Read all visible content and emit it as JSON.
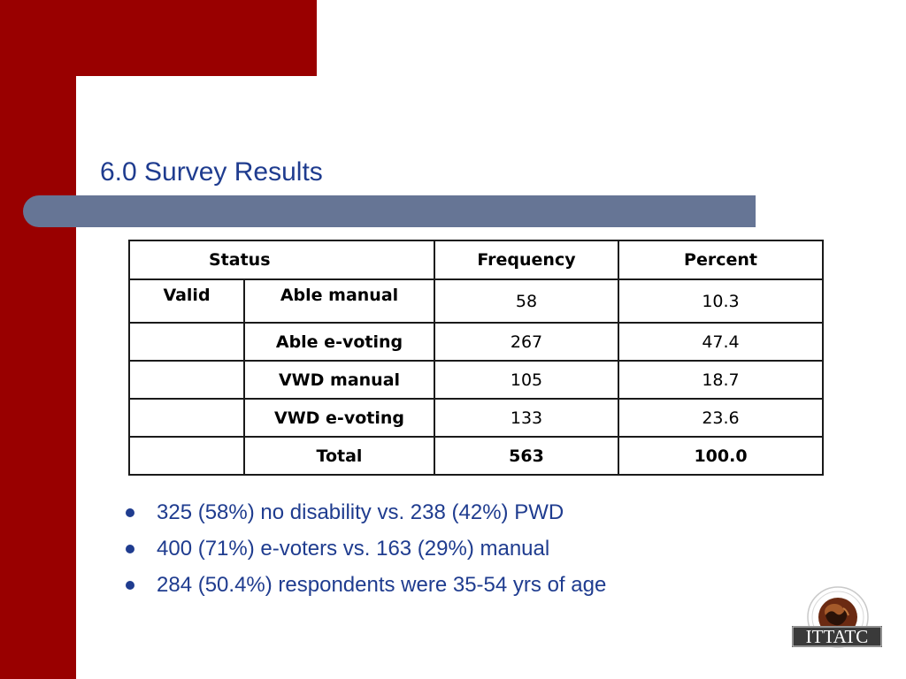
{
  "slide": {
    "title": "6.0 Survey Results"
  },
  "table": {
    "headers": [
      "Status",
      "Frequency",
      "Percent"
    ],
    "group_label": "Valid",
    "rows": [
      {
        "status": "Able manual",
        "frequency": "58",
        "percent": "10.3"
      },
      {
        "status": "Able e-voting",
        "frequency": "267",
        "percent": "47.4"
      },
      {
        "status": "VWD manual",
        "frequency": "105",
        "percent": "18.7"
      },
      {
        "status": "VWD e-voting",
        "frequency": "133",
        "percent": "23.6"
      },
      {
        "status": "Total",
        "frequency": "563",
        "percent": "100.0"
      }
    ]
  },
  "bullets": [
    "325 (58%) no disability vs. 238 (42%) PWD",
    "400 (71%) e-voters vs. 163 (29%) manual",
    "284 (50.4%) respondents were 35-54 yrs of age"
  ],
  "logo": {
    "text": "ITTATC"
  },
  "colors": {
    "accent_red": "#990000",
    "title_bar": "#667595",
    "text_blue": "#1f3c8f"
  }
}
